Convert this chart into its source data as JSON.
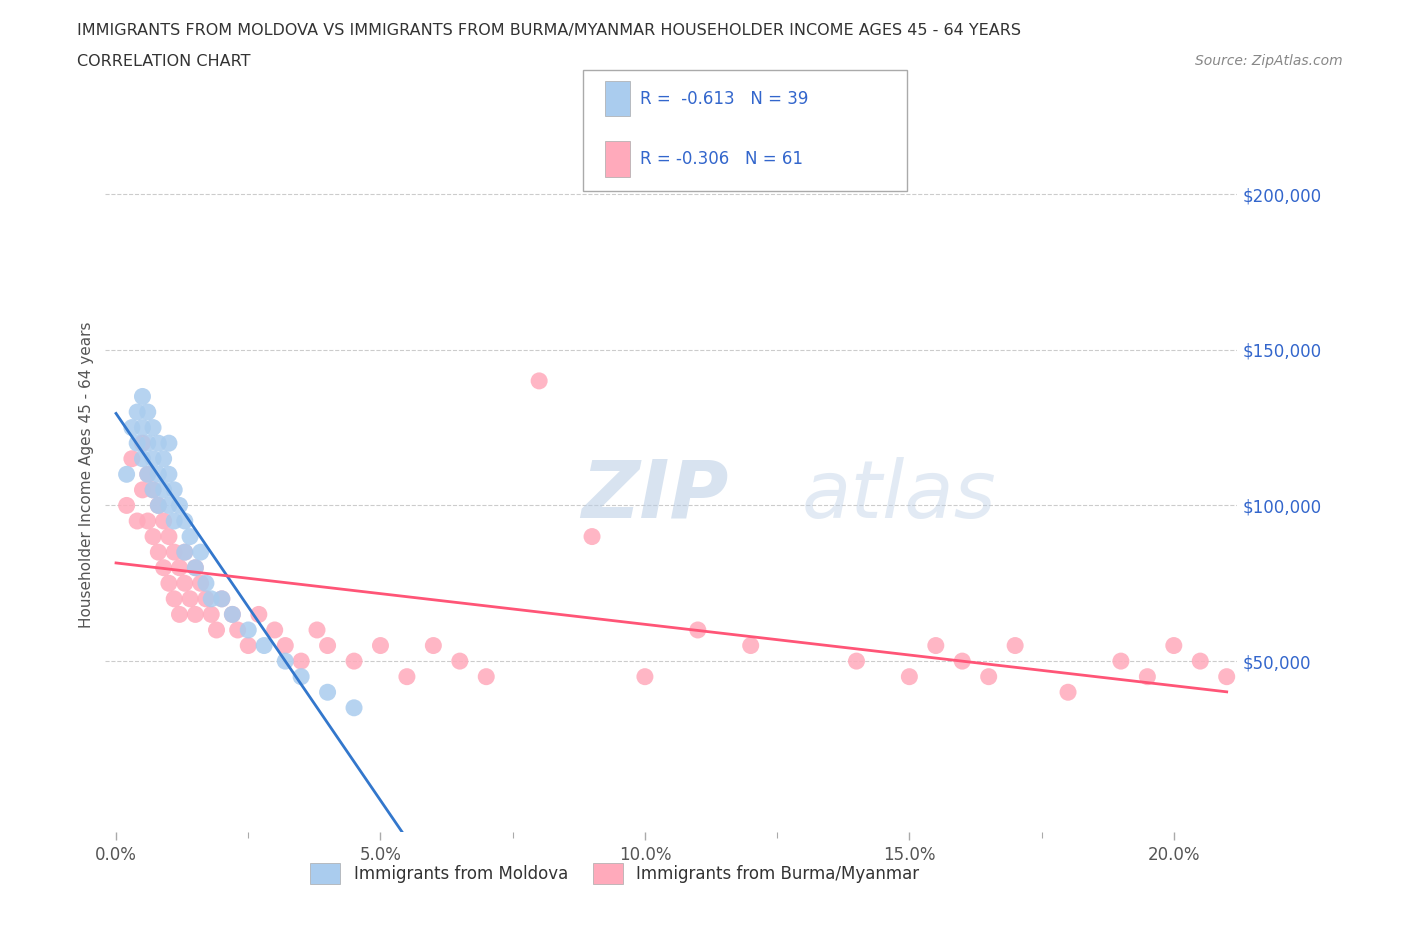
{
  "title_line1": "IMMIGRANTS FROM MOLDOVA VS IMMIGRANTS FROM BURMA/MYANMAR HOUSEHOLDER INCOME AGES 45 - 64 YEARS",
  "title_line2": "CORRELATION CHART",
  "source_text": "Source: ZipAtlas.com",
  "ylabel": "Householder Income Ages 45 - 64 years",
  "xlim": [
    -0.002,
    0.212
  ],
  "ylim": [
    -5000,
    225000
  ],
  "xtick_labels": [
    "0.0%",
    "5.0%",
    "10.0%",
    "15.0%",
    "20.0%"
  ],
  "xtick_values": [
    0.0,
    0.05,
    0.1,
    0.15,
    0.2
  ],
  "ytick_labels": [
    "$50,000",
    "$100,000",
    "$150,000",
    "$200,000"
  ],
  "ytick_values": [
    50000,
    100000,
    150000,
    200000
  ],
  "color_moldova": "#aaccee",
  "color_burma": "#ffaabb",
  "line_color_moldova": "#3377cc",
  "line_color_burma": "#ff5577",
  "R_moldova": -0.613,
  "N_moldova": 39,
  "R_burma": -0.306,
  "N_burma": 61,
  "legend_label_moldova": "Immigrants from Moldova",
  "legend_label_burma": "Immigrants from Burma/Myanmar",
  "watermark1": "ZIP",
  "watermark2": "atlas",
  "background_color": "#ffffff",
  "grid_color": "#cccccc",
  "title_color": "#333333",
  "stats_color": "#3366cc",
  "moldova_x": [
    0.002,
    0.003,
    0.004,
    0.004,
    0.005,
    0.005,
    0.005,
    0.006,
    0.006,
    0.006,
    0.007,
    0.007,
    0.007,
    0.008,
    0.008,
    0.008,
    0.009,
    0.009,
    0.01,
    0.01,
    0.01,
    0.011,
    0.011,
    0.012,
    0.013,
    0.013,
    0.014,
    0.015,
    0.016,
    0.017,
    0.018,
    0.02,
    0.022,
    0.025,
    0.028,
    0.032,
    0.035,
    0.04,
    0.045
  ],
  "moldova_y": [
    110000,
    125000,
    130000,
    120000,
    135000,
    125000,
    115000,
    130000,
    120000,
    110000,
    125000,
    115000,
    105000,
    120000,
    110000,
    100000,
    115000,
    105000,
    120000,
    110000,
    100000,
    105000,
    95000,
    100000,
    95000,
    85000,
    90000,
    80000,
    85000,
    75000,
    70000,
    70000,
    65000,
    60000,
    55000,
    50000,
    45000,
    40000,
    35000
  ],
  "burma_x": [
    0.002,
    0.003,
    0.004,
    0.005,
    0.005,
    0.006,
    0.006,
    0.007,
    0.007,
    0.008,
    0.008,
    0.009,
    0.009,
    0.01,
    0.01,
    0.011,
    0.011,
    0.012,
    0.012,
    0.013,
    0.013,
    0.014,
    0.015,
    0.015,
    0.016,
    0.017,
    0.018,
    0.019,
    0.02,
    0.022,
    0.023,
    0.025,
    0.027,
    0.03,
    0.032,
    0.035,
    0.038,
    0.04,
    0.045,
    0.05,
    0.055,
    0.06,
    0.065,
    0.07,
    0.08,
    0.09,
    0.1,
    0.11,
    0.12,
    0.14,
    0.15,
    0.155,
    0.16,
    0.165,
    0.17,
    0.18,
    0.19,
    0.195,
    0.2,
    0.205,
    0.21
  ],
  "burma_y": [
    100000,
    115000,
    95000,
    120000,
    105000,
    110000,
    95000,
    105000,
    90000,
    100000,
    85000,
    95000,
    80000,
    90000,
    75000,
    85000,
    70000,
    80000,
    65000,
    75000,
    85000,
    70000,
    80000,
    65000,
    75000,
    70000,
    65000,
    60000,
    70000,
    65000,
    60000,
    55000,
    65000,
    60000,
    55000,
    50000,
    60000,
    55000,
    50000,
    55000,
    45000,
    55000,
    50000,
    45000,
    140000,
    90000,
    45000,
    60000,
    55000,
    50000,
    45000,
    55000,
    50000,
    45000,
    55000,
    40000,
    50000,
    45000,
    55000,
    50000,
    45000
  ]
}
